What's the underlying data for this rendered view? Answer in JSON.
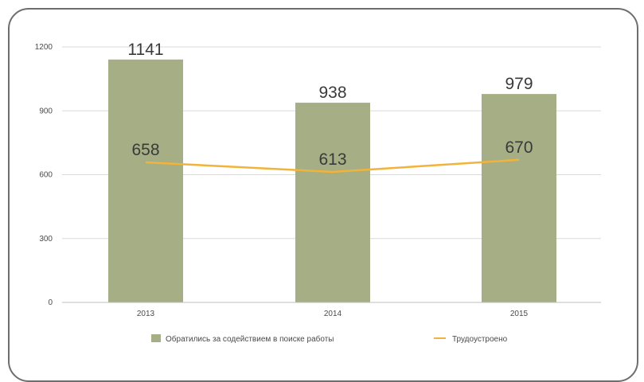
{
  "chart_data": {
    "type": "bar",
    "categories": [
      "2013",
      "2014",
      "2015"
    ],
    "ylim": [
      0,
      1200
    ],
    "yticks": [
      "0",
      "300",
      "600",
      "900",
      "1200"
    ],
    "grid": true,
    "legend_position": "bottom",
    "series": [
      {
        "name": "Обратились за содействием в поиске работы",
        "kind": "bar",
        "color": "#a5ae84",
        "values": [
          1141,
          938,
          979
        ]
      },
      {
        "name": "Трудоустроено",
        "kind": "line",
        "color": "#f2b33a",
        "values": [
          658,
          613,
          670
        ]
      }
    ]
  }
}
